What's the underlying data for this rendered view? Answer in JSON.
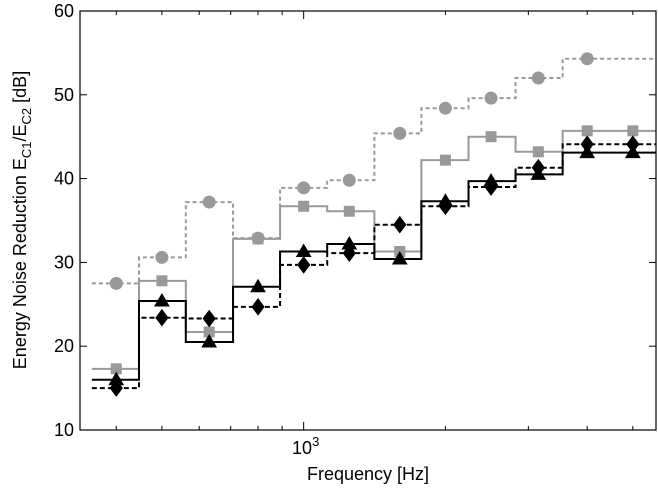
{
  "chart_data": {
    "type": "line",
    "step": true,
    "xscale": "log",
    "xlabel": "Frequency [Hz]",
    "ylabel_parts": {
      "main": "Energy Noise Reduction E",
      "sub1": "C1",
      "mid": "/E",
      "sub2": "C2",
      "unit": " [dB]"
    },
    "xlim": [
      335,
      5600
    ],
    "ylim": [
      10,
      60
    ],
    "xticks": [
      {
        "value": 1000,
        "base": "10",
        "exp": "3"
      }
    ],
    "yticks": [
      10,
      20,
      30,
      40,
      50,
      60
    ],
    "bands": [
      {
        "center": 400,
        "low": 355,
        "high": 447
      },
      {
        "center": 500,
        "low": 447,
        "high": 562
      },
      {
        "center": 630,
        "low": 562,
        "high": 708
      },
      {
        "center": 800,
        "low": 708,
        "high": 891
      },
      {
        "center": 1000,
        "low": 891,
        "high": 1122
      },
      {
        "center": 1250,
        "low": 1122,
        "high": 1413
      },
      {
        "center": 1600,
        "low": 1413,
        "high": 1778
      },
      {
        "center": 2000,
        "low": 1778,
        "high": 2239
      },
      {
        "center": 2500,
        "low": 2239,
        "high": 2818
      },
      {
        "center": 3150,
        "low": 2818,
        "high": 3548
      },
      {
        "center": 4000,
        "low": 3548,
        "high": 4467
      },
      {
        "center": 5000,
        "low": 4467,
        "high": 5600
      }
    ],
    "series": [
      {
        "color": "#999999",
        "dash": "4,3",
        "marker": "circle",
        "values": [
          27.5,
          30.6,
          37.2,
          32.9,
          38.9,
          39.8,
          45.4,
          48.4,
          49.6,
          52.0,
          54.3,
          54.3
        ],
        "marker_values": [
          27.5,
          30.6,
          37.2,
          32.9,
          38.9,
          39.8,
          45.4,
          48.4,
          49.6,
          52.0,
          54.3
        ]
      },
      {
        "color": "#999999",
        "dash": "",
        "marker": "square",
        "values": [
          17.3,
          27.8,
          21.7,
          32.8,
          36.7,
          36.1,
          31.3,
          42.2,
          45.0,
          43.2,
          45.7,
          45.7
        ],
        "marker_values": [
          17.3,
          27.8,
          21.7,
          32.8,
          36.7,
          36.1,
          31.3,
          42.2,
          45.0,
          43.2,
          45.7,
          45.7
        ]
      },
      {
        "color": "#000000",
        "dash": "",
        "marker": "triangle",
        "values": [
          16.0,
          25.4,
          20.5,
          27.1,
          31.3,
          32.2,
          30.4,
          37.3,
          39.7,
          40.5,
          43.1,
          43.1
        ],
        "marker_values": [
          16.0,
          25.4,
          20.5,
          27.1,
          31.3,
          32.2,
          30.4,
          37.3,
          39.7,
          40.5,
          43.1,
          43.1
        ]
      },
      {
        "color": "#000000",
        "dash": "5,3",
        "marker": "diamond",
        "values": [
          15.0,
          23.4,
          23.3,
          24.7,
          29.7,
          31.1,
          34.5,
          36.7,
          39.0,
          41.3,
          44.1,
          44.1
        ],
        "marker_values": [
          15.0,
          23.4,
          23.3,
          24.7,
          29.7,
          31.1,
          34.5,
          36.7,
          39.0,
          41.3,
          44.1,
          44.1
        ]
      }
    ]
  }
}
